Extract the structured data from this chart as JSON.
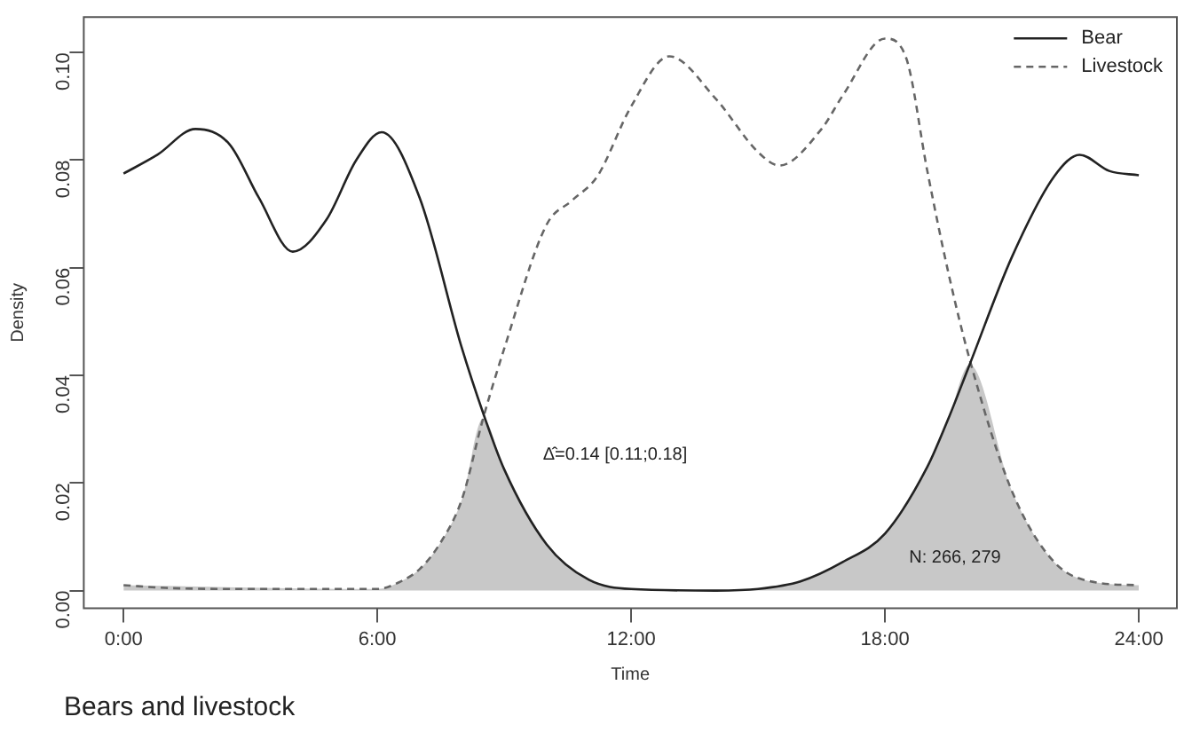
{
  "chart_data": {
    "type": "line",
    "xlabel": "Time",
    "ylabel": "Density",
    "xlim": [
      -0.94,
      24.9
    ],
    "ylim": [
      -0.0033,
      0.1066
    ],
    "xticks": [
      {
        "value": 0,
        "label": "0:00"
      },
      {
        "value": 6,
        "label": "6:00"
      },
      {
        "value": 12,
        "label": "12:00"
      },
      {
        "value": 18,
        "label": "18:00"
      },
      {
        "value": 24,
        "label": "24:00"
      }
    ],
    "yticks": [
      {
        "value": 0,
        "label": "0.00"
      },
      {
        "value": 0.02,
        "label": "0.02"
      },
      {
        "value": 0.04,
        "label": "0.04"
      },
      {
        "value": 0.06,
        "label": "0.06"
      },
      {
        "value": 0.08,
        "label": "0.08"
      },
      {
        "value": 0.1,
        "label": "0.10"
      }
    ],
    "grid": false,
    "legend": "top right",
    "marker": "none",
    "series": [
      {
        "type": "area",
        "color": "#c8c8c8",
        "x": [
          0,
          6,
          6.5,
          7,
          7.5,
          8,
          8.5,
          9,
          10,
          11,
          12,
          14,
          15,
          16,
          17,
          18,
          19,
          19.5,
          20,
          21,
          22,
          23,
          24
        ],
        "values": [
          0.001,
          0.0003,
          0.0015,
          0.004,
          0.009,
          0.017,
          0.032,
          0.0225,
          0.0086,
          0.002,
          0.0003,
          0,
          0.0003,
          0.0017,
          0.0053,
          0.0106,
          0.023,
          0.032,
          0.042,
          0.0185,
          0.0053,
          0.0015,
          0.001
        ]
      },
      {
        "name": "Bear",
        "color": "#222222",
        "line_style": "solid",
        "x": [
          0,
          0.8,
          1.7,
          2.5,
          3.2,
          4,
          4.8,
          5.5,
          6.1,
          7,
          8,
          8.5,
          9,
          10,
          11,
          12,
          14,
          15,
          16,
          17,
          18,
          19,
          19.5,
          20,
          21,
          22,
          22.6,
          23.3,
          24
        ],
        "values": [
          0.0775,
          0.081,
          0.0858,
          0.083,
          0.073,
          0.063,
          0.069,
          0.08,
          0.0852,
          0.073,
          0.045,
          0.033,
          0.0225,
          0.0086,
          0.002,
          0.0003,
          0,
          0.0003,
          0.0017,
          0.0053,
          0.0106,
          0.023,
          0.032,
          0.042,
          0.062,
          0.077,
          0.081,
          0.078,
          0.0772
        ]
      },
      {
        "name": "Livestock",
        "color": "#666666",
        "line_style": "dashed",
        "x": [
          0,
          1,
          3,
          6,
          6.5,
          7,
          7.5,
          8,
          8.5,
          9,
          10,
          10.6,
          11.2,
          12,
          12.9,
          14,
          15,
          15.5,
          16.5,
          17,
          18,
          18.5,
          19,
          19.5,
          20,
          21,
          22,
          23,
          24
        ],
        "values": [
          0.001,
          0.0005,
          0.0003,
          0.0003,
          0.0015,
          0.004,
          0.009,
          0.017,
          0.032,
          0.045,
          0.068,
          0.0725,
          0.077,
          0.09,
          0.0993,
          0.0914,
          0.0815,
          0.079,
          0.0858,
          0.092,
          0.1026,
          0.099,
          0.078,
          0.059,
          0.043,
          0.0185,
          0.0053,
          0.0015,
          0.001
        ]
      }
    ],
    "annotations": [
      "Δ̂=0.14 [0.11;0.18]",
      "N: 266, 279",
      "Bears and livestock"
    ]
  }
}
